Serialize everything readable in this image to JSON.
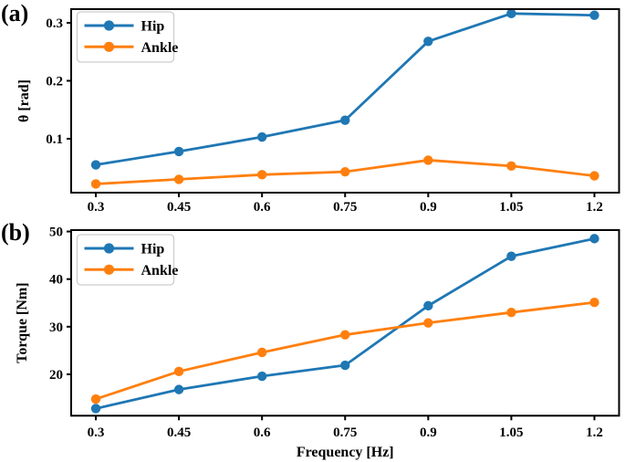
{
  "page": {
    "panel_a_tag": "(a)",
    "panel_b_tag": "(b)"
  },
  "colors": {
    "hip": "#1f77b4",
    "ankle": "#ff7f0e",
    "axis": "#000000",
    "legend_border": "#cccccc",
    "legend_background": "#ffffff"
  },
  "chart_data": [
    {
      "id": "panel-a",
      "type": "line",
      "title": "",
      "xlabel": "",
      "ylabel": "θ [rad]",
      "x": [
        0.3,
        0.45,
        0.6,
        0.75,
        0.9,
        1.05,
        1.2
      ],
      "xtick_labels": [
        "0.3",
        "0.45",
        "0.6",
        "0.75",
        "0.9",
        "1.05",
        "1.2"
      ],
      "ytick_values": [
        0.1,
        0.2,
        0.3
      ],
      "ytick_labels": [
        "0.1",
        "0.2",
        "0.3"
      ],
      "xlim": [
        0.2555,
        1.2445
      ],
      "ylim": [
        0.007,
        0.3236
      ],
      "grid": false,
      "legend": {
        "position": "upper-left",
        "entries": [
          "Hip",
          "Ankle"
        ]
      },
      "series": [
        {
          "name": "Hip",
          "color": "#1f77b4",
          "marker": "circle",
          "values": [
            0.055,
            0.078,
            0.103,
            0.132,
            0.268,
            0.316,
            0.313
          ]
        },
        {
          "name": "Ankle",
          "color": "#ff7f0e",
          "marker": "circle",
          "values": [
            0.022,
            0.03,
            0.038,
            0.043,
            0.063,
            0.053,
            0.036
          ]
        }
      ]
    },
    {
      "id": "panel-b",
      "type": "line",
      "title": "",
      "xlabel": "Frequency [Hz]",
      "ylabel": "Torque [Nm]",
      "x": [
        0.3,
        0.45,
        0.6,
        0.75,
        0.9,
        1.05,
        1.2
      ],
      "xtick_labels": [
        "0.3",
        "0.45",
        "0.6",
        "0.75",
        "0.9",
        "1.05",
        "1.2"
      ],
      "ytick_values": [
        20,
        30,
        40,
        50
      ],
      "ytick_labels": [
        "20",
        "30",
        "40",
        "50"
      ],
      "xlim": [
        0.2555,
        1.2445
      ],
      "ylim": [
        11.3,
        50.3
      ],
      "grid": false,
      "legend": {
        "position": "upper-left",
        "entries": [
          "Hip",
          "Ankle"
        ]
      },
      "series": [
        {
          "name": "Hip",
          "color": "#1f77b4",
          "marker": "circle",
          "values": [
            12.8,
            16.8,
            19.6,
            21.9,
            34.4,
            44.8,
            48.5
          ]
        },
        {
          "name": "Ankle",
          "color": "#ff7f0e",
          "marker": "circle",
          "values": [
            14.8,
            20.6,
            24.6,
            28.3,
            30.8,
            33.0,
            35.1
          ]
        }
      ]
    }
  ]
}
